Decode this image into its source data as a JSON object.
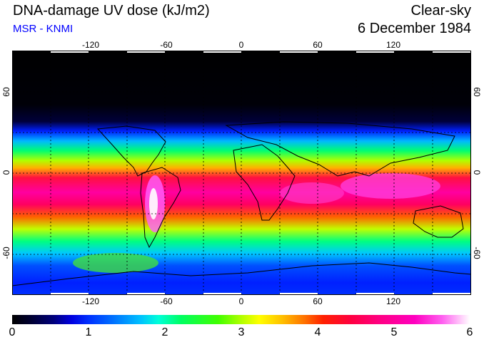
{
  "header": {
    "title": "DNA-damage UV dose (kJ/m2)",
    "source": "MSR - KNMI",
    "condition": "Clear-sky",
    "date": "6 December 1984"
  },
  "colors": {
    "source_text": "#0000ff"
  },
  "map": {
    "lon_ticks": [
      "-120",
      "-60",
      "0",
      "60",
      "120"
    ],
    "lat_ticks_left": [
      "60",
      "0",
      "-60"
    ],
    "lat_ticks_right": [
      "60",
      "0",
      "-60"
    ],
    "graticule_lon": [
      -150,
      -120,
      -90,
      -60,
      -30,
      0,
      30,
      60,
      90,
      120,
      150
    ],
    "graticule_lat": [
      60,
      30,
      0,
      -30,
      -60
    ]
  },
  "colorbar": {
    "min": 0,
    "max": 6,
    "labels": [
      "0",
      "1",
      "2",
      "3",
      "4",
      "5",
      "6"
    ]
  }
}
